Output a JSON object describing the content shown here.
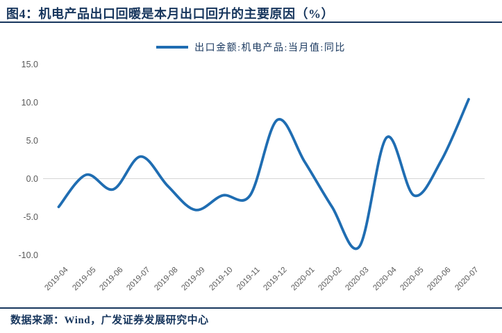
{
  "title": {
    "text": "图4：机电产品出口回暖是本月出口回升的主要原因（%）"
  },
  "legend": {
    "label": "出口金额:机电产品:当月值:同比"
  },
  "footer": {
    "source": "数据来源：Wind，广发证券发展研究中心"
  },
  "colors": {
    "line": "#1F6DB2",
    "heading_text": "#17365D",
    "axis_text": "#595959",
    "zero_gridline": "#D6D6D6",
    "rule": "#17365D"
  },
  "chart_data": {
    "type": "line",
    "title": "图4：机电产品出口回暖是本月出口回升的主要原因（%）",
    "unit": "%",
    "categories": [
      "2019-04",
      "2019-05",
      "2019-06",
      "2019-07",
      "2019-08",
      "2019-09",
      "2019-10",
      "2019-11",
      "2019-12",
      "2020-01",
      "2020-02",
      "2020-03",
      "2020-04",
      "2020-05",
      "2020-06",
      "2020-07"
    ],
    "series": [
      {
        "name": "出口金额:机电产品:当月值:同比",
        "color": "#1F6DB2",
        "values": [
          -3.7,
          0.5,
          -1.4,
          2.9,
          -1.0,
          -4.1,
          -2.2,
          -2.2,
          7.7,
          2.2,
          -3.7,
          -8.9,
          5.4,
          -2.2,
          2.4,
          10.4
        ]
      }
    ],
    "xlabel": "",
    "ylabel": "",
    "y_ticks": [
      15.0,
      10.0,
      5.0,
      0.0,
      -5.0,
      -10.0
    ],
    "ylim": [
      -11,
      16
    ],
    "x_label_rotation": -45,
    "legend_position": "top-center",
    "gridlines": "zero-line-only",
    "smooth": true
  }
}
